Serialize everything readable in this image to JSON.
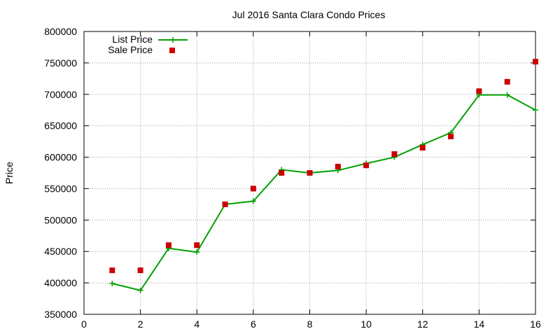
{
  "chart_data": {
    "type": "line",
    "title": "Jul 2016 Santa Clara Condo Prices",
    "xlabel": "",
    "ylabel": "Price",
    "xlim": [
      0,
      16
    ],
    "ylim": [
      350000,
      800000
    ],
    "x_ticks": [
      "0",
      "2",
      "4",
      "6",
      "8",
      "10",
      "12",
      "14",
      "16"
    ],
    "y_ticks": [
      "350000",
      "400000",
      "450000",
      "500000",
      "550000",
      "600000",
      "650000",
      "700000",
      "750000",
      "800000"
    ],
    "grid": true,
    "legend_position": "top-left",
    "series": [
      {
        "name": "List Price",
        "style": "linespoints",
        "color": "#00a000",
        "x": [
          1,
          2,
          3,
          4,
          5,
          6,
          7,
          8,
          9,
          10,
          11,
          12,
          13,
          14,
          15,
          16
        ],
        "values": [
          399000,
          388000,
          455000,
          449000,
          525000,
          530000,
          580000,
          575000,
          579000,
          590000,
          600000,
          620000,
          639000,
          699000,
          699000,
          675000
        ]
      },
      {
        "name": "Sale Price",
        "style": "points",
        "color": "#cc0000",
        "x": [
          1,
          2,
          3,
          4,
          5,
          6,
          7,
          8,
          9,
          10,
          11,
          12,
          13,
          14,
          15,
          16
        ],
        "values": [
          420000,
          420000,
          460000,
          460000,
          525000,
          550000,
          575000,
          575000,
          585000,
          587000,
          605000,
          615000,
          633000,
          705000,
          720000,
          752000
        ]
      }
    ]
  }
}
